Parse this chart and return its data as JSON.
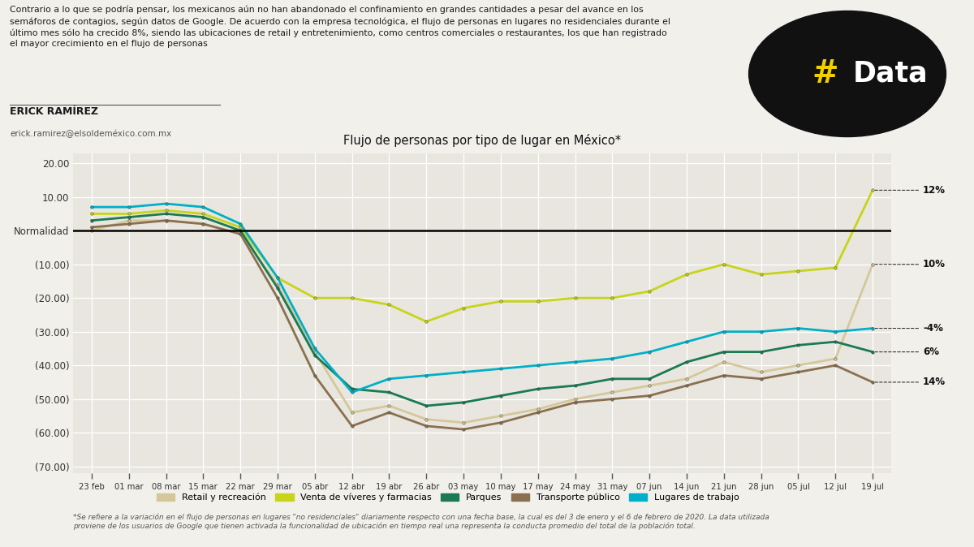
{
  "title": "Flujo de personas por tipo de lugar en México*",
  "author": "ERICK RAMÍREZ",
  "email": "erick.ramirez@elsoldeméxico.com.mx",
  "subtitle": "Contrario a lo que se podría pensar, los mexicanos aún no han abandonado el confinamiento en grandes cantidades a pesar del avance en los\nsemáforos de contagios, según datos de Google. De acuerdo con la empresa tecnológica, el flujo de personas en lugares no residenciales durante el\núltimo mes sólo ha crecido 8%, siendo las ubicaciones de retail y entretenimiento, como centros comerciales o restaurantes, los que han registrado\nel mayor crecimiento en el flujo de personas",
  "footnote": "*Se refiere a la variación en el flujo de personas en lugares \"no residenciales\" diariamente respecto con una fecha base, la cual es del 3 de enero y el 6 de febrero de 2020. La data utilizada\nproviene de los usuarios de Google que tienen activada la funcionalidad de ubicación en tiempo real una representa la conducta promedio del total de la población total.",
  "xticklabels": [
    "23 feb",
    "01 mar",
    "08 mar",
    "15 mar",
    "22 mar",
    "29 mar",
    "05 abr",
    "12 abr",
    "19 abr",
    "26 abr",
    "03 may",
    "10 may",
    "17 may",
    "24 may",
    "31 may",
    "07 jun",
    "14 jun",
    "21 jun",
    "28 jun",
    "05 jul",
    "12 jul",
    "19 jul"
  ],
  "ylim": [
    -72,
    23
  ],
  "yticks": [
    20,
    10,
    0,
    -10,
    -20,
    -30,
    -40,
    -50,
    -60,
    -70
  ],
  "ytick_labels": [
    "20.00",
    "10.00",
    "Normalidad",
    "(10.00)",
    "(20.00)",
    "(30.00)",
    "(40.00)",
    "(50.00)",
    "(60.00)",
    "(70.00)"
  ],
  "colors": {
    "retail": "#d4c89a",
    "viveres": "#c8d41a",
    "parques": "#1a7a55",
    "transporte": "#8b7050",
    "trabajo": "#00b0c8"
  },
  "labels": {
    "retail": "Retail y recreación",
    "viveres": "Venta de víveres y farmacias",
    "parques": "Parques",
    "transporte": "Transporte público",
    "trabajo": "Lugares de trabajo"
  },
  "data_retail": [
    0,
    3,
    3,
    2,
    -1,
    -16,
    -36,
    -54,
    -52,
    -56,
    -57,
    -55,
    -53,
    -50,
    -48,
    -46,
    -44,
    -39,
    -42,
    -40,
    -38,
    -10
  ],
  "data_viveres": [
    5,
    5,
    6,
    5,
    1,
    -14,
    -20,
    -20,
    -22,
    -27,
    -23,
    -21,
    -21,
    -20,
    -20,
    -18,
    -13,
    -10,
    -13,
    -12,
    -11,
    12
  ],
  "data_parques": [
    3,
    4,
    5,
    4,
    0,
    -17,
    -37,
    -47,
    -48,
    -52,
    -51,
    -49,
    -47,
    -46,
    -44,
    -44,
    -39,
    -36,
    -36,
    -34,
    -33,
    -36
  ],
  "data_transporte": [
    1,
    2,
    3,
    2,
    -1,
    -20,
    -43,
    -58,
    -54,
    -58,
    -59,
    -57,
    -54,
    -51,
    -50,
    -49,
    -46,
    -43,
    -44,
    -42,
    -40,
    -45
  ],
  "data_trabajo": [
    7,
    7,
    8,
    7,
    2,
    -14,
    -35,
    -48,
    -44,
    -43,
    -42,
    -41,
    -40,
    -39,
    -38,
    -36,
    -33,
    -30,
    -30,
    -29,
    -30,
    -29
  ],
  "bg_color": "#f2f0eb",
  "plot_bg": "#e8e6df",
  "grid_color": "#ffffff"
}
